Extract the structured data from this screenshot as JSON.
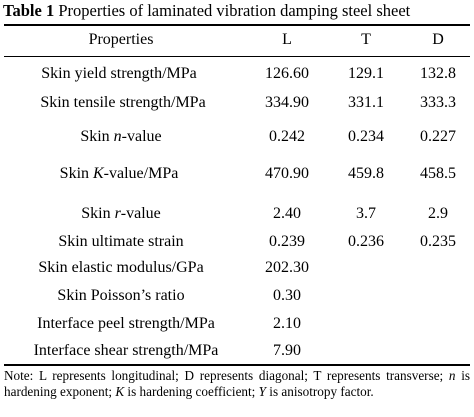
{
  "table": {
    "label": "Table 1",
    "title": "Properties of laminated vibration damping steel sheet",
    "columns": [
      "Properties",
      "L",
      "T",
      "D"
    ],
    "rows": [
      {
        "property": "Skin yield strength/MPa",
        "L": "126.60",
        "T": "129.1",
        "D": "132.8"
      },
      {
        "property": "Skin tensile strength/MPa",
        "L": "334.90",
        "T": "331.1",
        "D": "333.3"
      },
      {
        "property_pre": "Skin ",
        "property_it": "n",
        "property_post": "-value",
        "L": "0.242",
        "T": "0.234",
        "D": "0.227"
      },
      {
        "property_pre": "Skin ",
        "property_it": "K",
        "property_post": "-value/MPa",
        "L": "470.90",
        "T": "459.8",
        "D": "458.5"
      },
      {
        "property_pre": "Skin ",
        "property_it": "r",
        "property_post": "-value",
        "L": "2.40",
        "T": "3.7",
        "D": "2.9"
      },
      {
        "property": "Skin ultimate strain",
        "L": "0.239",
        "T": "0.236",
        "D": "0.235"
      },
      {
        "property": "Skin elastic modulus/GPa",
        "L": "202.30",
        "T": "",
        "D": ""
      },
      {
        "property": "Skin Poisson’s ratio",
        "L": "0.30",
        "T": "",
        "D": ""
      },
      {
        "property": "Interface peel strength/MPa",
        "L": "2.10",
        "T": "",
        "D": ""
      },
      {
        "property": "Interface shear strength/MPa",
        "L": "7.90",
        "T": "",
        "D": ""
      }
    ],
    "note": {
      "p1": "Note: L represents longitudinal; D represents diagonal; T represents transverse; ",
      "n": "n",
      "p2": " is hardening exponent; ",
      "K": "K",
      "p3": " is hardening coefficient; ",
      "Y": "Y",
      "p4": " is anisotropy factor."
    }
  }
}
